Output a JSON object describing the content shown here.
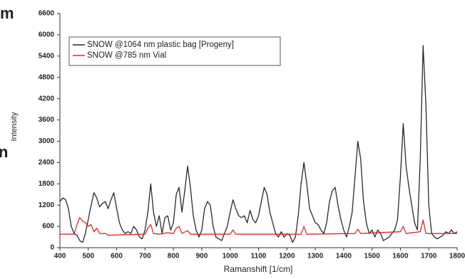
{
  "cropped_text": [
    "m",
    "n"
  ],
  "chart_data": {
    "type": "line",
    "xlabel": "Ramanshift [1/cm]",
    "ylabel": "Intensity",
    "xlim": [
      400,
      1800
    ],
    "ylim": [
      0,
      6600
    ],
    "xticks": [
      400,
      500,
      600,
      700,
      800,
      900,
      1000,
      1100,
      1200,
      1300,
      1400,
      1500,
      1600,
      1700,
      1800
    ],
    "yticks": [
      0,
      600,
      1200,
      1800,
      2400,
      3000,
      3600,
      4200,
      4800,
      5400,
      6000,
      6600
    ],
    "grid": false,
    "legend": "upper left",
    "series": [
      {
        "name": "SNOW @1064 nm plastic bag [Progeny]",
        "color": "#2a2a2a",
        "x": [
          400,
          410,
          420,
          430,
          440,
          450,
          460,
          470,
          480,
          490,
          500,
          510,
          520,
          530,
          540,
          550,
          560,
          570,
          580,
          590,
          600,
          610,
          620,
          630,
          640,
          650,
          660,
          670,
          680,
          690,
          700,
          710,
          720,
          730,
          740,
          750,
          760,
          770,
          780,
          790,
          800,
          810,
          820,
          830,
          840,
          850,
          860,
          870,
          880,
          890,
          900,
          910,
          920,
          930,
          940,
          950,
          960,
          970,
          980,
          990,
          1000,
          1010,
          1020,
          1030,
          1040,
          1050,
          1060,
          1070,
          1080,
          1090,
          1100,
          1110,
          1120,
          1130,
          1140,
          1150,
          1160,
          1170,
          1180,
          1190,
          1200,
          1210,
          1220,
          1230,
          1240,
          1250,
          1260,
          1270,
          1280,
          1290,
          1300,
          1310,
          1320,
          1330,
          1340,
          1350,
          1360,
          1370,
          1380,
          1390,
          1400,
          1410,
          1420,
          1430,
          1440,
          1450,
          1460,
          1470,
          1480,
          1490,
          1500,
          1510,
          1520,
          1530,
          1540,
          1550,
          1560,
          1570,
          1580,
          1590,
          1600,
          1610,
          1620,
          1630,
          1640,
          1650,
          1660,
          1670,
          1680,
          1690,
          1700,
          1710,
          1720,
          1730,
          1740,
          1750,
          1760,
          1770,
          1780,
          1790,
          1800
        ],
        "values": [
          1300,
          1400,
          1350,
          1100,
          600,
          400,
          350,
          200,
          150,
          400,
          800,
          1200,
          1550,
          1400,
          1150,
          1250,
          1300,
          1100,
          1350,
          1550,
          1100,
          700,
          500,
          400,
          450,
          400,
          600,
          500,
          300,
          250,
          500,
          1000,
          1800,
          1000,
          600,
          900,
          400,
          850,
          900,
          500,
          700,
          1500,
          1700,
          1000,
          1600,
          2300,
          1700,
          900,
          500,
          300,
          500,
          1100,
          1300,
          1200,
          600,
          300,
          250,
          200,
          400,
          600,
          1000,
          1350,
          1100,
          900,
          850,
          900,
          700,
          1050,
          800,
          700,
          900,
          1300,
          1700,
          1500,
          1000,
          700,
          400,
          300,
          450,
          300,
          400,
          350,
          150,
          300,
          900,
          1800,
          2400,
          1800,
          1100,
          900,
          700,
          650,
          500,
          400,
          700,
          1300,
          1600,
          1700,
          1200,
          800,
          500,
          300,
          600,
          1000,
          2000,
          3000,
          2500,
          1300,
          700,
          400,
          500,
          300,
          500,
          400,
          200,
          250,
          300,
          400,
          500,
          800,
          2000,
          3500,
          2300,
          1700,
          1200,
          700,
          500,
          2500,
          5700,
          4000,
          1200,
          400,
          300,
          250,
          300,
          350,
          450,
          400,
          500,
          400,
          450
        ]
      },
      {
        "name": "SNOW @785 nm Vial",
        "color": "#d42a2a",
        "x": [
          400,
          450,
          460,
          470,
          480,
          490,
          500,
          510,
          520,
          530,
          540,
          560,
          570,
          600,
          700,
          710,
          720,
          730,
          750,
          780,
          800,
          810,
          820,
          830,
          850,
          860,
          1000,
          1010,
          1020,
          1250,
          1260,
          1270,
          1440,
          1450,
          1460,
          1600,
          1610,
          1620,
          1670,
          1680,
          1690,
          1800
        ],
        "values": [
          380,
          380,
          650,
          850,
          750,
          700,
          600,
          650,
          450,
          550,
          400,
          400,
          350,
          360,
          380,
          550,
          650,
          400,
          380,
          420,
          400,
          550,
          600,
          400,
          480,
          380,
          380,
          500,
          380,
          380,
          600,
          380,
          400,
          520,
          400,
          450,
          600,
          400,
          450,
          780,
          400,
          400
        ]
      }
    ]
  }
}
